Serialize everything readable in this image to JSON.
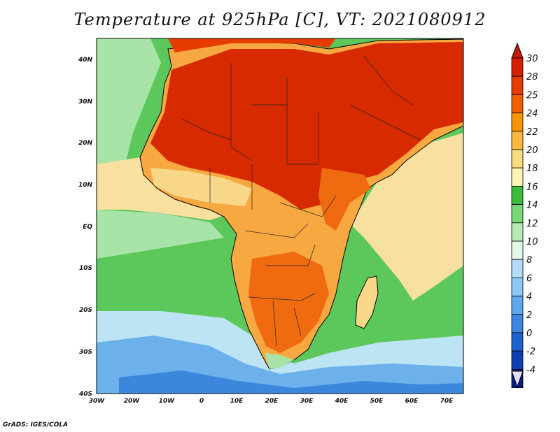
{
  "title": "Temperature at 925hPa [C], VT: 2021080912",
  "credit": "GrADS: IGES/COLA",
  "lat_ticks": [
    "40N",
    "30N",
    "20N",
    "10N",
    "EQ",
    "10S",
    "20S",
    "30S",
    "40S"
  ],
  "lon_ticks": [
    "30W",
    "20W",
    "10W",
    "0",
    "10E",
    "20E",
    "30E",
    "40E",
    "50E",
    "60E",
    "70E"
  ],
  "colorbar": {
    "levels": [
      "30",
      "28",
      "25",
      "24",
      "22",
      "20",
      "18",
      "16",
      "14",
      "12",
      "10",
      "8",
      "6",
      "4",
      "2",
      "0",
      "-2",
      "-4"
    ],
    "colors": [
      "#d42000",
      "#e63c00",
      "#f06000",
      "#f89400",
      "#f8b840",
      "#f8dc80",
      "#fcf4b4",
      "#3cbc3c",
      "#78d878",
      "#b4ecb4",
      "#e4f8e8",
      "#b4dcf8",
      "#8cc8f4",
      "#60a8ec",
      "#3c88e0",
      "#1e62d0",
      "#1040b0",
      "#0c1c80"
    ],
    "top_arrow_color": "#c01a00",
    "bottom_arrow_color": "#e0e0f8"
  },
  "map_colors": {
    "ocean_green": "#5cc85c",
    "ocean_pale_green": "#a8e4a8",
    "ocean_cream": "#f8e0a0",
    "ocean_cool": "#bce4f4",
    "ocean_blue": "#6cb0ec",
    "ocean_deep": "#3c86dc",
    "land_hot": "#d82a00",
    "land_warm": "#f06a10",
    "land_mild": "#f8a840",
    "land_cool": "#f8d888"
  }
}
